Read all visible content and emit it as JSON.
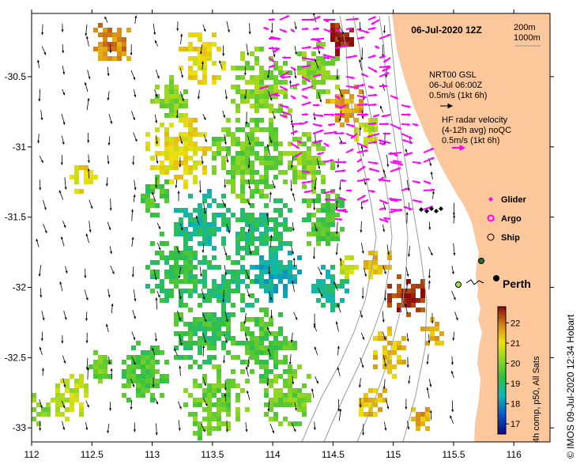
{
  "map": {
    "title": "06-Jul-2020 12Z",
    "depth_contours": [
      "200m",
      "1000m"
    ],
    "wind_source": {
      "label": "NRT00 GSL",
      "time": "06-Jul 06:00Z",
      "scale": "0.5m/s (1kt 6h)"
    },
    "radar": {
      "line1": "HF radar velocity",
      "line2": "(4-12h avg) noQC",
      "scale": "0.5m/s (1kt 6h)"
    },
    "legend": [
      {
        "label": "Glider",
        "symbol": "diamond-icon",
        "color": "#ff00ff"
      },
      {
        "label": "Argo",
        "symbol": "ring-icon",
        "color": "#ff00ff"
      },
      {
        "label": "Ship",
        "symbol": "circle-icon",
        "color": "#000000"
      }
    ],
    "place": "Perth",
    "colorbar": {
      "label": "4h comp, p50, All Sats",
      "ticks": [
        "17",
        "18",
        "19",
        "20",
        "21",
        "22"
      ],
      "min": 16.5,
      "max": 22.8
    },
    "credit": "© IMOS 09-Jul-2020 12:34 Hobart",
    "x_ticks": [
      "112",
      "112.5",
      "113",
      "113.5",
      "114",
      "114.5",
      "115",
      "115.5",
      "116"
    ],
    "y_ticks": [
      "-30.5",
      "-31",
      "-31.5",
      "-32",
      "-32.5",
      "-33"
    ],
    "lon_range": [
      112,
      116.3
    ],
    "lat_range": [
      -33.1,
      -30.05
    ],
    "colors": {
      "land": "#fbc79b",
      "ocean": "#ffffff",
      "radar_arrow": "#ff00ff",
      "wind_arrow": "#000000",
      "contour": "#9a9a9a"
    }
  }
}
